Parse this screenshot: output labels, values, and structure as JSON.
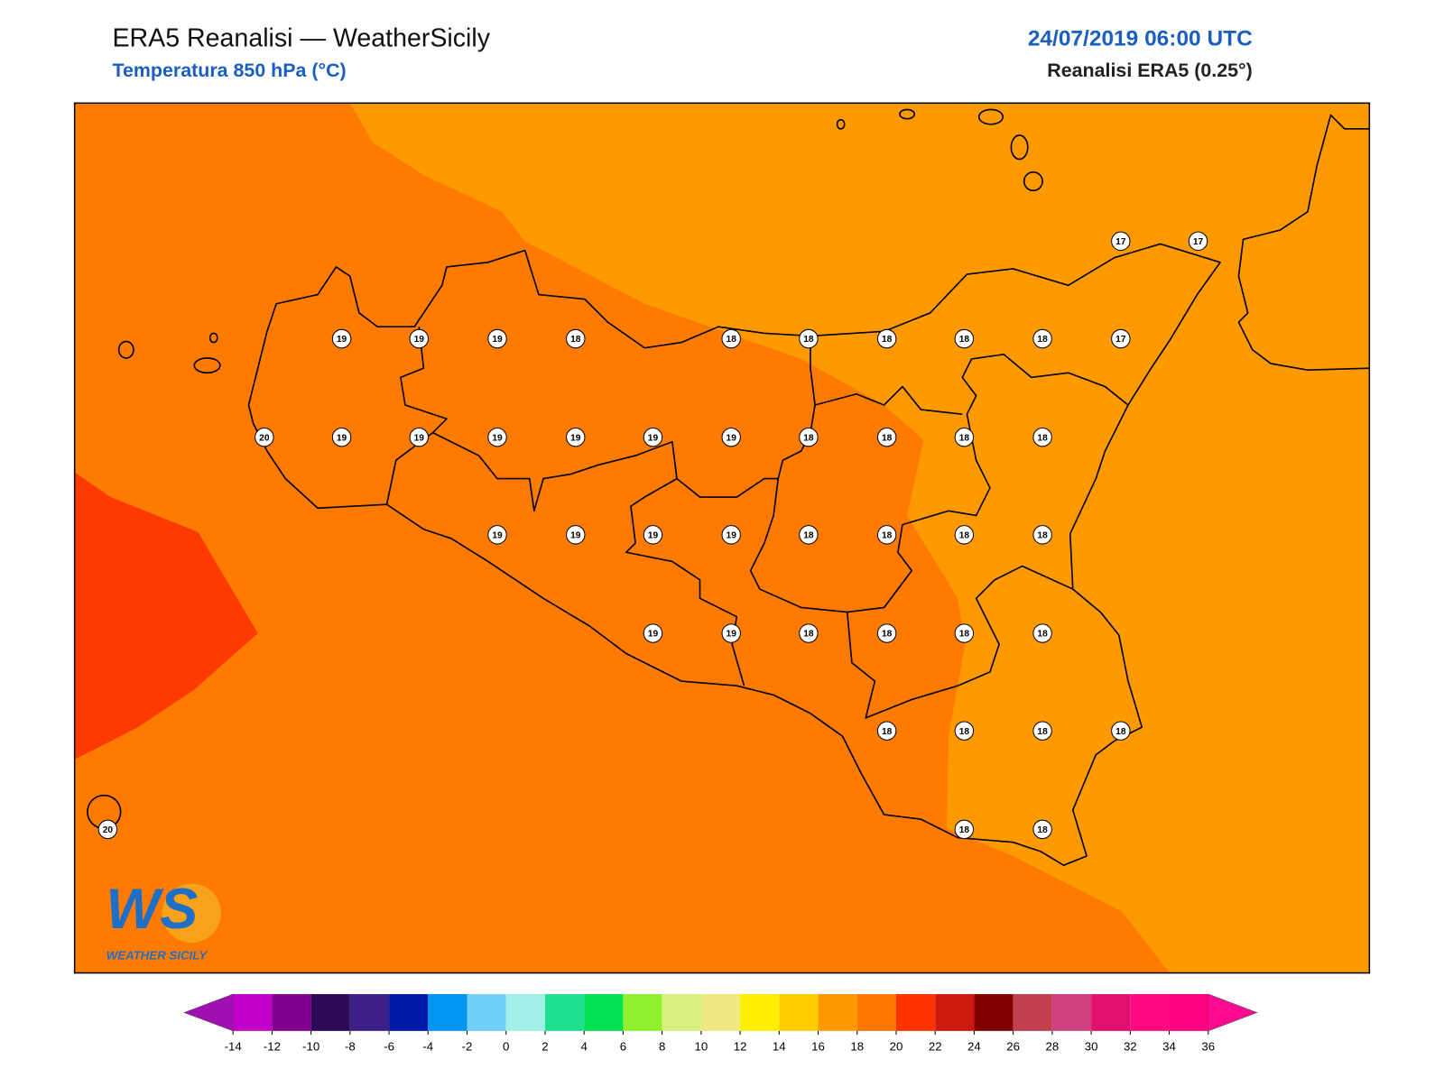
{
  "header": {
    "title": "ERA5 Reanalisi — WeatherSicily",
    "subtitle": "Temperatura 850 hPa (°C)",
    "datetime": "24/07/2019 06:00 UTC",
    "source": "Reanalisi ERA5 (0.25°)"
  },
  "stations": {
    "values": [
      17,
      17,
      19,
      19,
      19,
      18,
      18,
      18,
      18,
      18,
      18,
      17,
      20,
      19,
      19,
      19,
      19,
      19,
      19,
      18,
      18,
      18,
      18,
      19,
      19,
      19,
      19,
      18,
      18,
      18,
      18,
      19,
      19,
      18,
      18,
      18,
      18,
      18,
      18,
      18,
      18,
      20,
      18,
      18
    ]
  },
  "colorbar": {
    "ticks": [
      -14,
      -12,
      -10,
      -8,
      -6,
      -4,
      -2,
      0,
      2,
      4,
      6,
      8,
      10,
      12,
      14,
      16,
      18,
      20,
      22,
      24,
      26,
      28,
      30,
      32,
      34,
      36
    ],
    "under_color": "#a010b0",
    "over_color": "#ff0a90",
    "colors": [
      "#c000c8",
      "#80008f",
      "#2d0a55",
      "#3c2088",
      "#0018a8",
      "#0096f0",
      "#70d0f8",
      "#a0f0e8",
      "#20e090",
      "#00e050",
      "#90f030",
      "#d8f080",
      "#f0e880",
      "#ffee00",
      "#ffcc00",
      "#ff9900",
      "#ff7700",
      "#ff3300",
      "#cc1a10",
      "#800000",
      "#c04050",
      "#d04080",
      "#e01070",
      "#ff0a80",
      "#ff0080"
    ]
  },
  "logo": {
    "mark": "WS",
    "text": "WEATHER SICILY"
  }
}
